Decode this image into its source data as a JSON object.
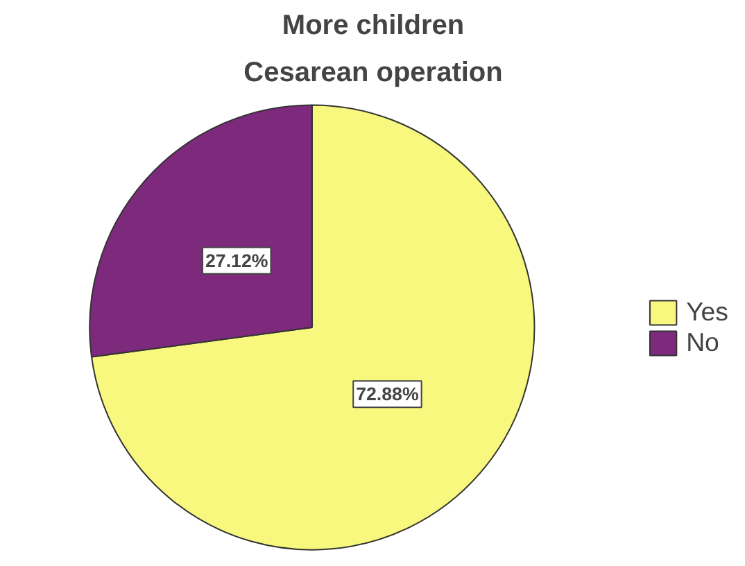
{
  "chart_data": {
    "type": "pie",
    "title": "More children",
    "subtitle": "Cesarean operation",
    "categories": [
      "Yes",
      "No"
    ],
    "values": [
      72.88,
      27.12
    ],
    "colors": [
      "#f8f87e",
      "#7d2a7d"
    ],
    "value_labels": [
      "72.88%",
      "27.12%"
    ],
    "legend": "right"
  }
}
